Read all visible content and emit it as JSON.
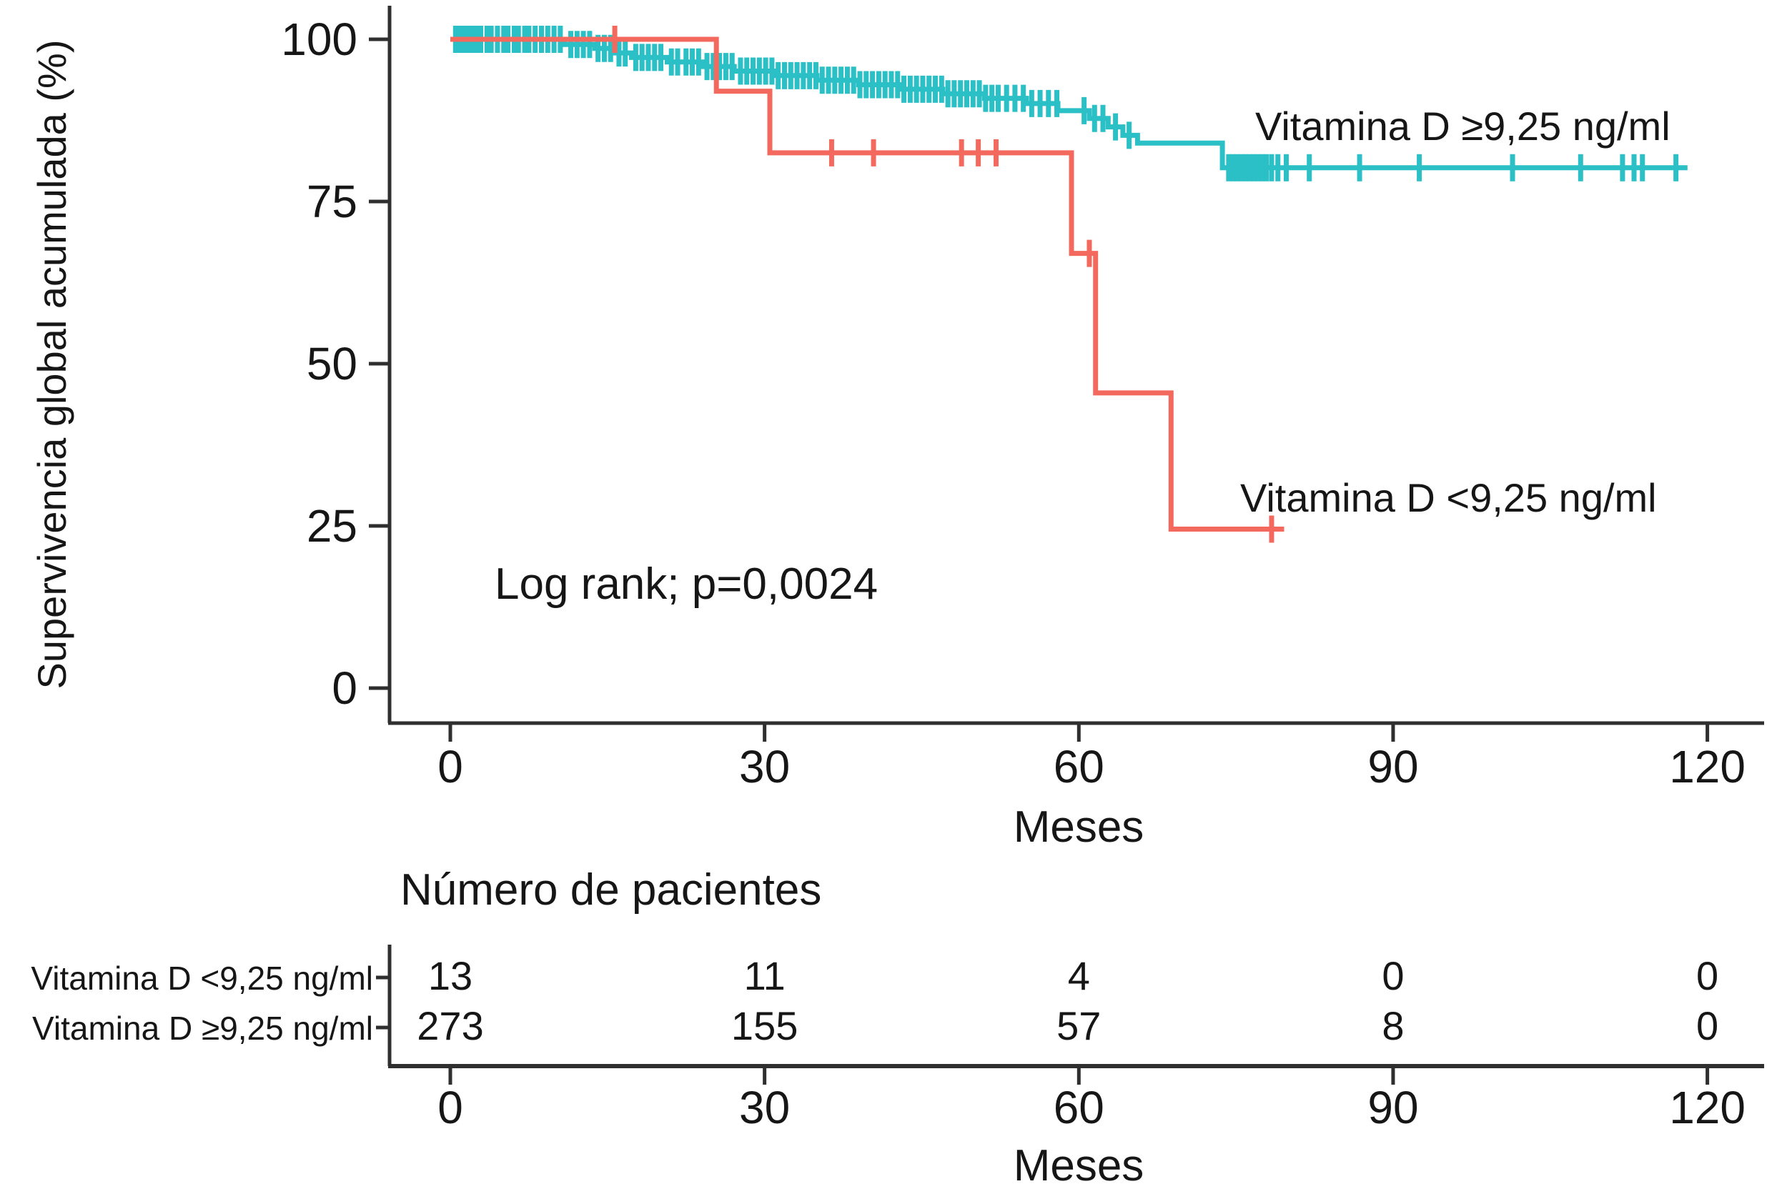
{
  "chart_data": {
    "type": "line",
    "subtype": "kaplan-meier-step",
    "title": "",
    "ylabel": "Supervivencia global acumulada (%)",
    "xlabel": "Meses",
    "annotation": "Log rank; p=0,0024",
    "xlim": [
      0,
      125
    ],
    "ylim": [
      0,
      105
    ],
    "x_ticks": [
      0,
      30,
      60,
      90,
      120
    ],
    "y_ticks": [
      0,
      25,
      50,
      75,
      100
    ],
    "grid": false,
    "legend_position": "curve-end-labels",
    "colors": {
      "low_group": "#F4695E",
      "high_group": "#2BBFC6",
      "axis": "#2F2F2F",
      "text": "#161616"
    },
    "series": [
      {
        "name": "Vitamina D ≥9,25 ng/ml",
        "color": "#2BBFC6",
        "steps": [
          [
            0,
            100
          ],
          [
            10.9,
            100
          ],
          [
            10.9,
            99.2
          ],
          [
            13.8,
            99.2
          ],
          [
            13.8,
            98.6
          ],
          [
            15.7,
            98.6
          ],
          [
            15.7,
            97.9
          ],
          [
            17.3,
            97.9
          ],
          [
            17.3,
            97.2
          ],
          [
            20.7,
            97.2
          ],
          [
            20.7,
            96.5
          ],
          [
            24.1,
            96.5
          ],
          [
            24.1,
            95.8
          ],
          [
            27.1,
            95.8
          ],
          [
            27.1,
            95.1
          ],
          [
            31,
            95.1
          ],
          [
            31,
            94.4
          ],
          [
            35,
            94.4
          ],
          [
            35,
            93.7
          ],
          [
            39,
            93.7
          ],
          [
            39,
            93
          ],
          [
            43,
            93
          ],
          [
            43,
            92.3
          ],
          [
            47,
            92.3
          ],
          [
            47,
            91.6
          ],
          [
            51,
            91.6
          ],
          [
            51,
            90.9
          ],
          [
            55,
            90.9
          ],
          [
            55,
            90.1
          ],
          [
            58,
            90.1
          ],
          [
            58,
            89
          ],
          [
            61,
            89
          ],
          [
            61,
            87.8
          ],
          [
            62.8,
            87.8
          ],
          [
            62.8,
            86.5
          ],
          [
            64.2,
            86.5
          ],
          [
            64.2,
            85.2
          ],
          [
            65.6,
            85.2
          ],
          [
            65.6,
            84
          ],
          [
            73.7,
            84
          ],
          [
            73.7,
            80.2
          ],
          [
            118.1,
            80.2
          ]
        ],
        "censor_months": [
          0.5,
          0.9,
          1.3,
          1.7,
          2.1,
          2.5,
          2.9,
          3.5,
          3.9,
          4.5,
          5.1,
          5.5,
          6.1,
          6.5,
          7.1,
          7.5,
          8.1,
          8.7,
          9.3,
          9.9,
          10.5,
          11.5,
          12.1,
          12.7,
          13.3,
          14.1,
          14.7,
          15.3,
          16.1,
          16.7,
          17.7,
          18.3,
          18.9,
          19.5,
          20.1,
          21.1,
          21.7,
          22.5,
          23.1,
          23.7,
          24.5,
          25.1,
          25.7,
          26.3,
          26.9,
          27.7,
          28.3,
          28.9,
          29.5,
          30.1,
          30.7,
          31.3,
          31.9,
          32.5,
          33.1,
          33.7,
          34.3,
          34.9,
          35.5,
          36.1,
          36.7,
          37.3,
          37.9,
          38.5,
          39.1,
          39.7,
          40.3,
          40.9,
          41.5,
          42.1,
          42.7,
          43.3,
          43.9,
          44.5,
          45.1,
          45.7,
          46.3,
          46.9,
          47.5,
          48.1,
          48.7,
          49.3,
          49.9,
          50.5,
          51.1,
          51.7,
          52.3,
          53.1,
          53.9,
          54.7,
          55.5,
          56.3,
          57.1,
          57.9,
          60.5,
          61.5,
          62.3,
          63.5,
          64.8,
          74.3,
          74.7,
          75.1,
          75.5,
          75.9,
          76.3,
          76.7,
          77.1,
          77.5,
          77.9,
          78.4,
          79.0,
          79.8,
          82.0,
          86.8,
          92.5,
          101.4,
          107.9,
          111.9,
          113.0,
          113.8,
          117.0
        ]
      },
      {
        "name": "Vitamina D <9,25 ng/ml",
        "color": "#F4695E",
        "steps": [
          [
            0,
            100
          ],
          [
            25.4,
            100
          ],
          [
            25.4,
            92
          ],
          [
            30.5,
            92
          ],
          [
            30.5,
            82.5
          ],
          [
            59.3,
            82.5
          ],
          [
            59.3,
            67
          ],
          [
            61.6,
            67
          ],
          [
            61.6,
            45.5
          ],
          [
            68.8,
            45.5
          ],
          [
            68.8,
            24.5
          ],
          [
            79.6,
            24.5
          ]
        ],
        "censor_months": [
          15.7,
          36.4,
          40.4,
          48.8,
          50.4,
          52.1,
          61.0,
          78.4
        ]
      }
    ],
    "risk_table": {
      "title": "Número de pacientes",
      "xlabel": "Meses",
      "x_ticks": [
        0,
        30,
        60,
        90,
        120
      ],
      "rows": [
        {
          "name": "Vitamina D <9,25 ng/ml",
          "color": "#F4695E",
          "values": [
            "13",
            "11",
            "4",
            "0",
            "0"
          ]
        },
        {
          "name": "Vitamina D ≥9,25 ng/ml",
          "color": "#2BBFC6",
          "values": [
            "273",
            "155",
            "57",
            "8",
            "0"
          ]
        }
      ]
    }
  }
}
